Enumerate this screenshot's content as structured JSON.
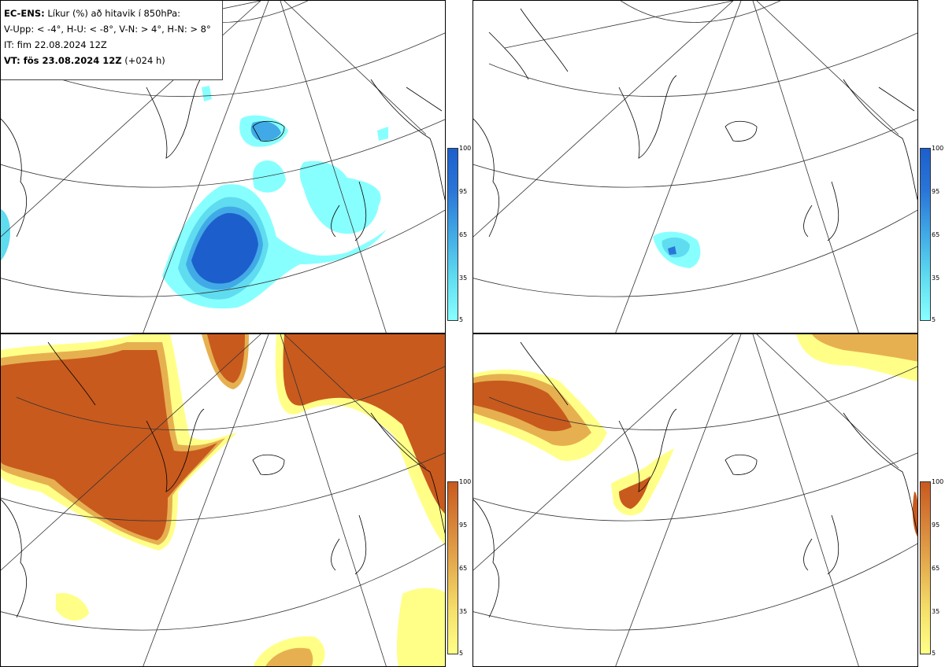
{
  "title": {
    "line1_bold": "EC-ENS:",
    "line1_rest": " Líkur (%) að hitavik í 850hPa:",
    "line2": "V-Upp: < -4°, H-U: < -8°, V-N: > 4°, H-N: > 8°",
    "line3": "IT: fim 22.08.2024 12Z",
    "line4_bold": "VT: fös 23.08.2024 12Z",
    "line4_rest": " (+024 h)"
  },
  "colorbar_ticks": [
    "100",
    "95",
    "65",
    "35",
    "5"
  ],
  "colors": {
    "cold_ramp": [
      "#88ffff",
      "#5fdcf0",
      "#41aae6",
      "#2a76d8",
      "#1c5fcc"
    ],
    "warm_ramp": [
      "#ffff88",
      "#f5e06a",
      "#e6b050",
      "#d8843a",
      "#c85a1e"
    ],
    "coast": "#000000",
    "grid": "#333333"
  },
  "panels": [
    {
      "id": "V-Upp",
      "type": "cold",
      "description": "Probability of 850hPa temperature anomaly below -4"
    },
    {
      "id": "H-U",
      "type": "cold",
      "description": "Probability of 850hPa temperature anomaly below -8"
    },
    {
      "id": "V-N",
      "type": "warm",
      "description": "Probability of 850hPa temperature anomaly above 4"
    },
    {
      "id": "H-N",
      "type": "warm",
      "description": "Probability of 850hPa temperature anomaly above 8"
    }
  ]
}
